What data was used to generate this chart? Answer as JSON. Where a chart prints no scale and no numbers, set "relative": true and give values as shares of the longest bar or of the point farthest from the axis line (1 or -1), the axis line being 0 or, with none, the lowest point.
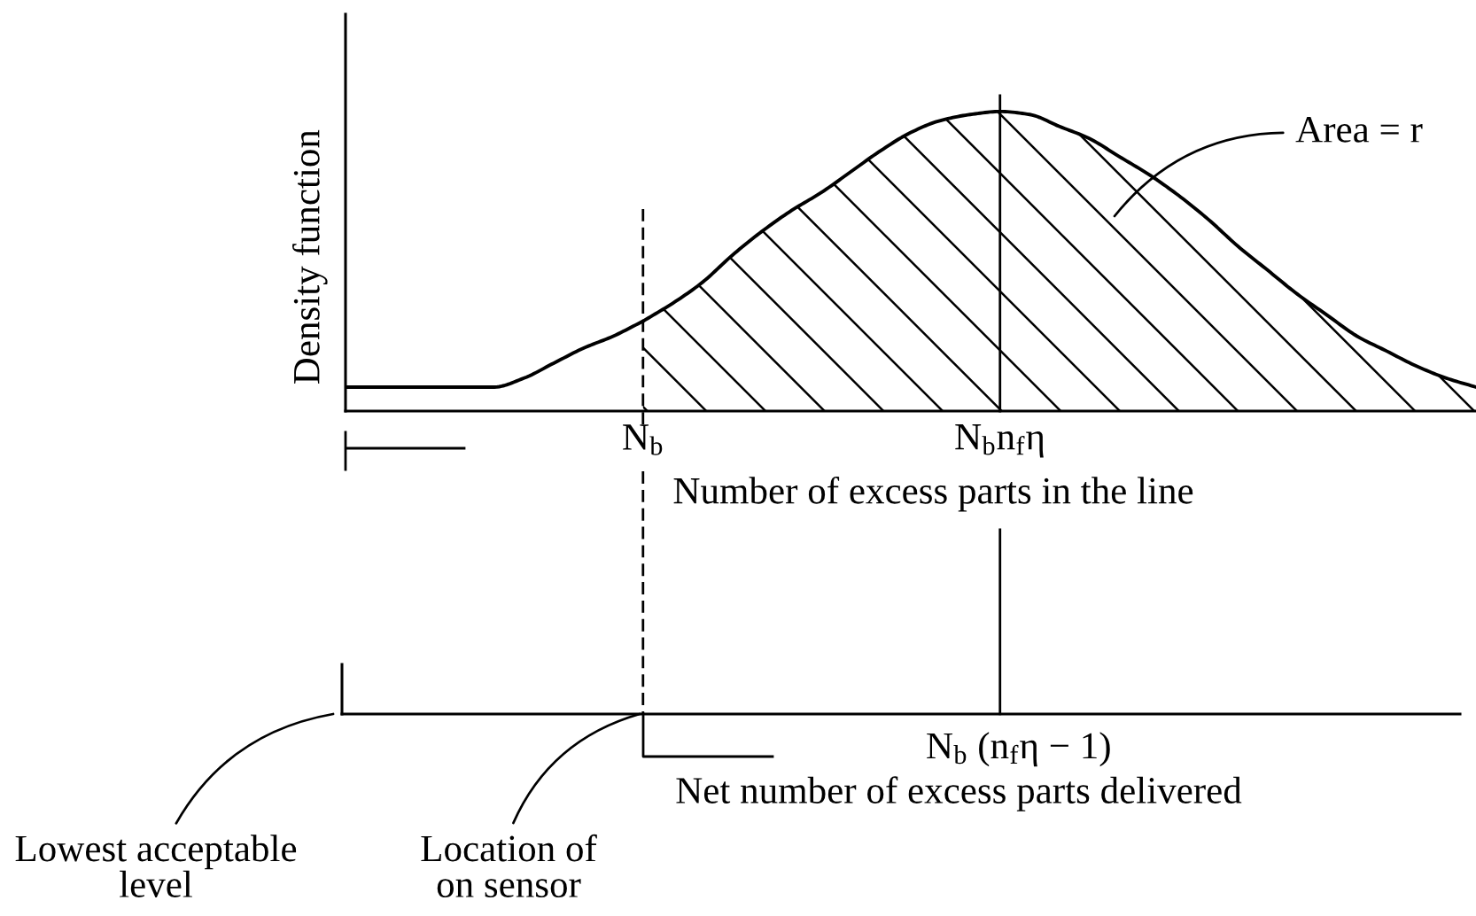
{
  "chart_data": {
    "type": "line",
    "relative": true,
    "tick_labels": "x",
    "xlabel": "Number of excess parts in the line",
    "ylabel": "Density function",
    "categories": [
      null,
      null,
      null,
      null,
      null,
      null,
      null,
      null,
      null,
      null,
      "N$_{b}$",
      null,
      null,
      null,
      null,
      null,
      null,
      null,
      null,
      null,
      null,
      null,
      "N$_{b}$n$_{f}$η",
      null,
      null,
      null,
      null,
      null,
      null,
      null,
      null,
      null,
      null,
      null,
      null,
      null,
      null,
      null,
      null
    ],
    "series": [
      {
        "type": "line",
        "color": "#000000",
        "values": [
          0.08,
          0.08,
          0.08,
          0.08,
          0.08,
          0.08,
          0.11,
          0.16,
          0.21,
          0.25,
          0.3,
          null,
          null,
          null,
          null,
          null,
          null,
          null,
          null,
          null,
          null,
          null,
          null,
          null,
          null,
          null,
          null,
          null,
          null,
          null,
          null,
          null,
          null,
          null,
          null,
          null,
          null,
          null,
          null
        ]
      },
      {
        "type": "area",
        "color": "#000000",
        "values": [
          null,
          null,
          null,
          null,
          null,
          null,
          null,
          null,
          null,
          null,
          0.3,
          0.36,
          0.43,
          0.52,
          0.6,
          0.67,
          0.73,
          0.8,
          0.87,
          0.93,
          0.97,
          0.99,
          1.0,
          0.99,
          0.95,
          0.91,
          0.85,
          0.79,
          0.72,
          0.64,
          0.55,
          0.47,
          0.39,
          0.32,
          0.25,
          0.2,
          0.15,
          0.11,
          0.08
        ]
      }
    ],
    "ref_lines": [
      {
        "axis": "x",
        "value": "N$_{b}$",
        "line_style": "dashed"
      },
      {
        "axis": "x",
        "value": "N$_{b}$n$_{f}$η"
      }
    ],
    "annotations": [
      "Area = r",
      "N$_{b}$ (n$_{f}$η − 1)",
      "Net number of excess parts delivered",
      "Lowest acceptable\nlevel",
      "Location of\non sensor"
    ]
  }
}
